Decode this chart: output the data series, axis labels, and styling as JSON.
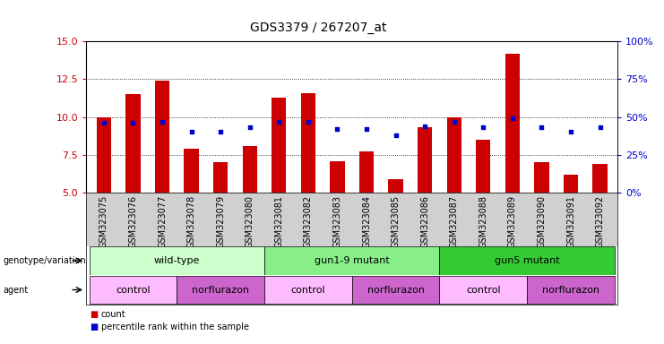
{
  "title": "GDS3379 / 267207_at",
  "samples": [
    "GSM323075",
    "GSM323076",
    "GSM323077",
    "GSM323078",
    "GSM323079",
    "GSM323080",
    "GSM323081",
    "GSM323082",
    "GSM323083",
    "GSM323084",
    "GSM323085",
    "GSM323086",
    "GSM323087",
    "GSM323088",
    "GSM323089",
    "GSM323090",
    "GSM323091",
    "GSM323092"
  ],
  "counts": [
    10.0,
    11.5,
    12.4,
    7.9,
    7.0,
    8.1,
    11.3,
    11.6,
    7.1,
    7.7,
    5.9,
    9.3,
    10.0,
    8.5,
    14.2,
    7.0,
    6.2,
    6.9
  ],
  "percentile_ranks": [
    46,
    46,
    47,
    40,
    40,
    43,
    47,
    47,
    42,
    42,
    38,
    44,
    47,
    43,
    49,
    43,
    40,
    43
  ],
  "ylim_left": [
    5,
    15
  ],
  "ylim_right": [
    0,
    100
  ],
  "yticks_left": [
    5.0,
    7.5,
    10.0,
    12.5,
    15.0
  ],
  "yticks_right": [
    0,
    25,
    50,
    75,
    100
  ],
  "bar_color": "#cc0000",
  "dot_color": "#0000cc",
  "bar_bottom": 5,
  "genotype_groups": [
    {
      "label": "wild-type",
      "start": 0,
      "end": 6,
      "color": "#ccffcc"
    },
    {
      "label": "gun1-9 mutant",
      "start": 6,
      "end": 12,
      "color": "#88ee88"
    },
    {
      "label": "gun5 mutant",
      "start": 12,
      "end": 18,
      "color": "#33cc33"
    }
  ],
  "agent_groups": [
    {
      "label": "control",
      "start": 0,
      "end": 3,
      "color": "#ffbbff"
    },
    {
      "label": "norflurazon",
      "start": 3,
      "end": 6,
      "color": "#cc66cc"
    },
    {
      "label": "control",
      "start": 6,
      "end": 9,
      "color": "#ffbbff"
    },
    {
      "label": "norflurazon",
      "start": 9,
      "end": 12,
      "color": "#cc66cc"
    },
    {
      "label": "control",
      "start": 12,
      "end": 15,
      "color": "#ffbbff"
    },
    {
      "label": "norflurazon",
      "start": 15,
      "end": 18,
      "color": "#cc66cc"
    }
  ],
  "xlabel_rotation": 90,
  "tick_label_fontsize": 7,
  "title_fontsize": 10,
  "left_ylabel_color": "#cc0000",
  "right_ylabel_color": "#0000cc",
  "xticklabel_bg": "#d0d0d0"
}
